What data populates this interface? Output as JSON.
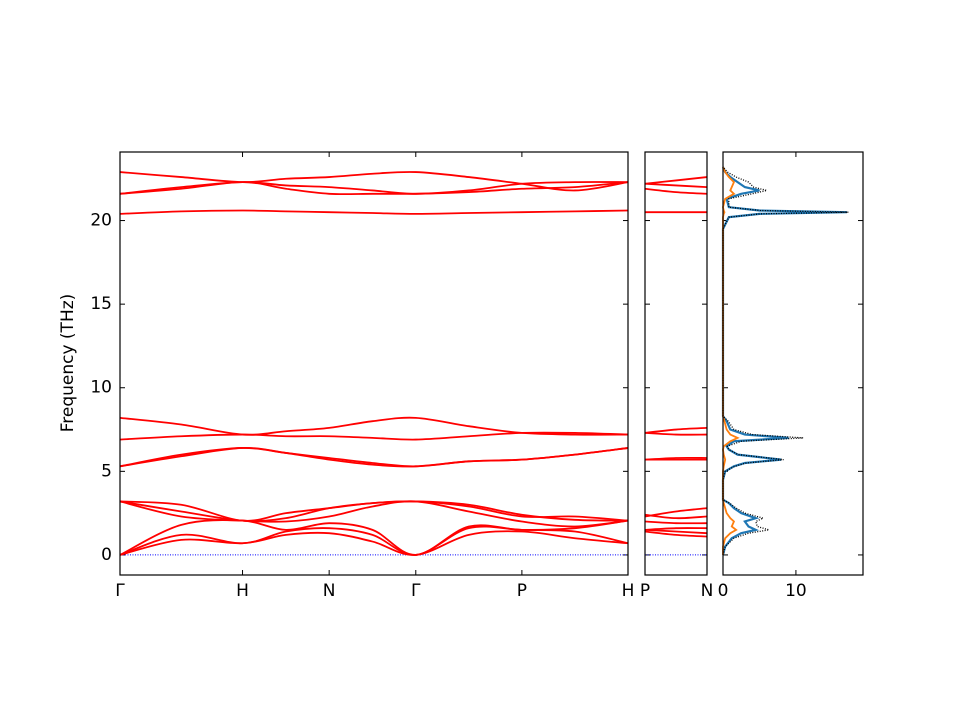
{
  "chart_data": [
    {
      "type": "band",
      "ylabel": "Frequency (THz)",
      "x": [
        0,
        0.5,
        1,
        1.354,
        1.707,
        2.061,
        2.414,
        2.847,
        3.28,
        3.713,
        4.146
      ],
      "xlim": [
        0,
        4.146
      ],
      "xticks": [
        {
          "value": 0,
          "label": "Γ"
        },
        {
          "value": 1,
          "label": "H"
        },
        {
          "value": 1.707,
          "label": "N"
        },
        {
          "value": 2.414,
          "label": "Γ"
        },
        {
          "value": 3.28,
          "label": "P"
        },
        {
          "value": 4.146,
          "label": "H"
        }
      ],
      "ylim": [
        -1.2,
        24.1
      ],
      "yticks": [
        0,
        5,
        10,
        15,
        20
      ],
      "zero_line_color": "#0000ff",
      "series": [
        {
          "color": "#ff0000",
          "values": [
            0,
            0.9,
            0.7,
            1.2,
            1.3,
            0.8,
            0,
            1.2,
            1.4,
            1.0,
            0.7
          ]
        },
        {
          "color": "#ff0000",
          "values": [
            0,
            1.2,
            0.7,
            1.4,
            1.6,
            1.2,
            0,
            1.6,
            1.5,
            1.4,
            0.7
          ]
        },
        {
          "color": "#ff0000",
          "values": [
            0,
            1.8,
            2.05,
            1.5,
            1.9,
            1.5,
            0,
            1.7,
            1.5,
            1.6,
            2.05
          ]
        },
        {
          "color": "#ff0000",
          "values": [
            3.2,
            2.3,
            2.05,
            2.0,
            2.3,
            2.9,
            3.2,
            2.6,
            2.0,
            1.7,
            2.05
          ]
        },
        {
          "color": "#ff0000",
          "values": [
            3.2,
            2.6,
            2.05,
            2.2,
            2.8,
            3.1,
            3.2,
            3.0,
            2.4,
            2.1,
            2.05
          ]
        },
        {
          "color": "#ff0000",
          "values": [
            3.2,
            3.0,
            2.05,
            2.5,
            2.8,
            3.1,
            3.2,
            2.9,
            2.3,
            2.3,
            2.05
          ]
        },
        {
          "color": "#ff0000",
          "values": [
            5.3,
            5.9,
            6.4,
            6.1,
            5.7,
            5.4,
            5.3,
            5.6,
            5.7,
            6.0,
            6.4
          ]
        },
        {
          "color": "#ff0000",
          "values": [
            5.3,
            6.0,
            6.4,
            6.1,
            5.8,
            5.5,
            5.3,
            5.6,
            5.7,
            6.0,
            6.4
          ]
        },
        {
          "color": "#ff0000",
          "values": [
            6.9,
            7.1,
            7.2,
            7.1,
            7.1,
            7.0,
            6.9,
            7.1,
            7.3,
            7.3,
            7.2
          ]
        },
        {
          "color": "#ff0000",
          "values": [
            8.2,
            7.8,
            7.2,
            7.4,
            7.6,
            8.0,
            8.2,
            7.7,
            7.3,
            7.2,
            7.2
          ]
        },
        {
          "color": "#ff0000",
          "values": [
            20.4,
            20.55,
            20.6,
            20.55,
            20.5,
            20.45,
            20.4,
            20.45,
            20.5,
            20.55,
            20.6
          ]
        },
        {
          "color": "#ff0000",
          "values": [
            21.6,
            21.9,
            22.3,
            21.9,
            21.6,
            21.6,
            21.6,
            21.7,
            21.9,
            22.0,
            22.3
          ]
        },
        {
          "color": "#ff0000",
          "values": [
            21.6,
            22.0,
            22.3,
            22.1,
            22.0,
            21.8,
            21.6,
            21.8,
            22.2,
            22.3,
            22.3
          ]
        },
        {
          "color": "#ff0000",
          "values": [
            22.9,
            22.6,
            22.3,
            22.5,
            22.6,
            22.8,
            22.9,
            22.6,
            22.2,
            21.8,
            22.3
          ]
        }
      ]
    },
    {
      "type": "band",
      "x": [
        0,
        0.25,
        0.5
      ],
      "xlim": [
        0,
        0.5
      ],
      "xticks": [
        {
          "value": 0,
          "label": "P"
        },
        {
          "value": 0.5,
          "label": "N"
        }
      ],
      "ylim": [
        -1.2,
        24.1
      ],
      "yticks": [
        0,
        5,
        10,
        15,
        20
      ],
      "zero_line_color": "#0000ff",
      "series": [
        {
          "color": "#ff0000",
          "values": [
            1.4,
            1.2,
            1.1
          ]
        },
        {
          "color": "#ff0000",
          "values": [
            1.5,
            1.4,
            1.3
          ]
        },
        {
          "color": "#ff0000",
          "values": [
            1.5,
            1.6,
            1.6
          ]
        },
        {
          "color": "#ff0000",
          "values": [
            2.0,
            1.9,
            1.9
          ]
        },
        {
          "color": "#ff0000",
          "values": [
            2.4,
            2.2,
            2.3
          ]
        },
        {
          "color": "#ff0000",
          "values": [
            2.3,
            2.6,
            2.8
          ]
        },
        {
          "color": "#ff0000",
          "values": [
            5.7,
            5.7,
            5.7
          ]
        },
        {
          "color": "#ff0000",
          "values": [
            5.7,
            5.8,
            5.8
          ]
        },
        {
          "color": "#ff0000",
          "values": [
            7.3,
            7.2,
            7.2
          ]
        },
        {
          "color": "#ff0000",
          "values": [
            7.3,
            7.5,
            7.6
          ]
        },
        {
          "color": "#ff0000",
          "values": [
            20.5,
            20.5,
            20.5
          ]
        },
        {
          "color": "#ff0000",
          "values": [
            21.9,
            21.7,
            21.6
          ]
        },
        {
          "color": "#ff0000",
          "values": [
            22.2,
            22.1,
            22.0
          ]
        },
        {
          "color": "#ff0000",
          "values": [
            22.2,
            22.4,
            22.6
          ]
        }
      ]
    },
    {
      "type": "dos",
      "y": [
        0,
        0.5,
        1.0,
        1.3,
        1.5,
        1.7,
        2.0,
        2.2,
        2.5,
        2.8,
        3.1,
        3.3,
        4.5,
        5.0,
        5.3,
        5.5,
        5.7,
        6.0,
        6.3,
        6.5,
        6.8,
        7.0,
        7.2,
        7.5,
        8.0,
        8.3,
        10,
        19.5,
        20.2,
        20.4,
        20.5,
        20.6,
        20.8,
        21.3,
        21.6,
        21.8,
        22.0,
        22.3,
        22.6,
        22.9,
        23.2
      ],
      "xlim": [
        0,
        19.2
      ],
      "xticks": [
        0,
        10
      ],
      "ylim": [
        -1.2,
        24.1
      ],
      "yticks": [
        0,
        5,
        10,
        15,
        20
      ],
      "series": [
        {
          "color": "#1f77b4",
          "style": "solid",
          "values": [
            0,
            0.3,
            1.2,
            2.5,
            4.5,
            3.5,
            3.0,
            4.5,
            2.5,
            1.5,
            0.8,
            0,
            0,
            0.3,
            1.5,
            3,
            8,
            2,
            0.8,
            0.5,
            1.5,
            9,
            3,
            1,
            0.5,
            0,
            0,
            0,
            0.8,
            5,
            17,
            5,
            0.8,
            0.5,
            2.5,
            5,
            3,
            2,
            1.0,
            0.3,
            0
          ]
        },
        {
          "color": "#ff7f0e",
          "style": "solid",
          "values": [
            0,
            0,
            0.3,
            1.0,
            1.8,
            1.2,
            1.5,
            1.0,
            0.5,
            0.3,
            0.1,
            0,
            0,
            0,
            0.1,
            0.2,
            0.3,
            0.1,
            0,
            0.1,
            1.0,
            2.0,
            1.0,
            0.5,
            0.2,
            0,
            0,
            0,
            0,
            0.1,
            0.2,
            0.1,
            0,
            0.3,
            1.5,
            1.0,
            1.2,
            1.5,
            0.8,
            0.3,
            0
          ]
        },
        {
          "color": "#000000",
          "style": "dotted",
          "values": [
            0,
            0.3,
            1.5,
            3.5,
            6.3,
            4.7,
            4.5,
            5.5,
            3.0,
            1.8,
            0.9,
            0,
            0,
            0.3,
            1.6,
            3.2,
            8.3,
            2.1,
            0.8,
            0.6,
            2.5,
            11,
            4,
            1.5,
            0.7,
            0,
            0,
            0,
            0.8,
            5.1,
            17.2,
            5.1,
            0.8,
            0.8,
            4,
            6,
            4.2,
            3.5,
            1.8,
            0.6,
            0
          ]
        }
      ]
    }
  ]
}
